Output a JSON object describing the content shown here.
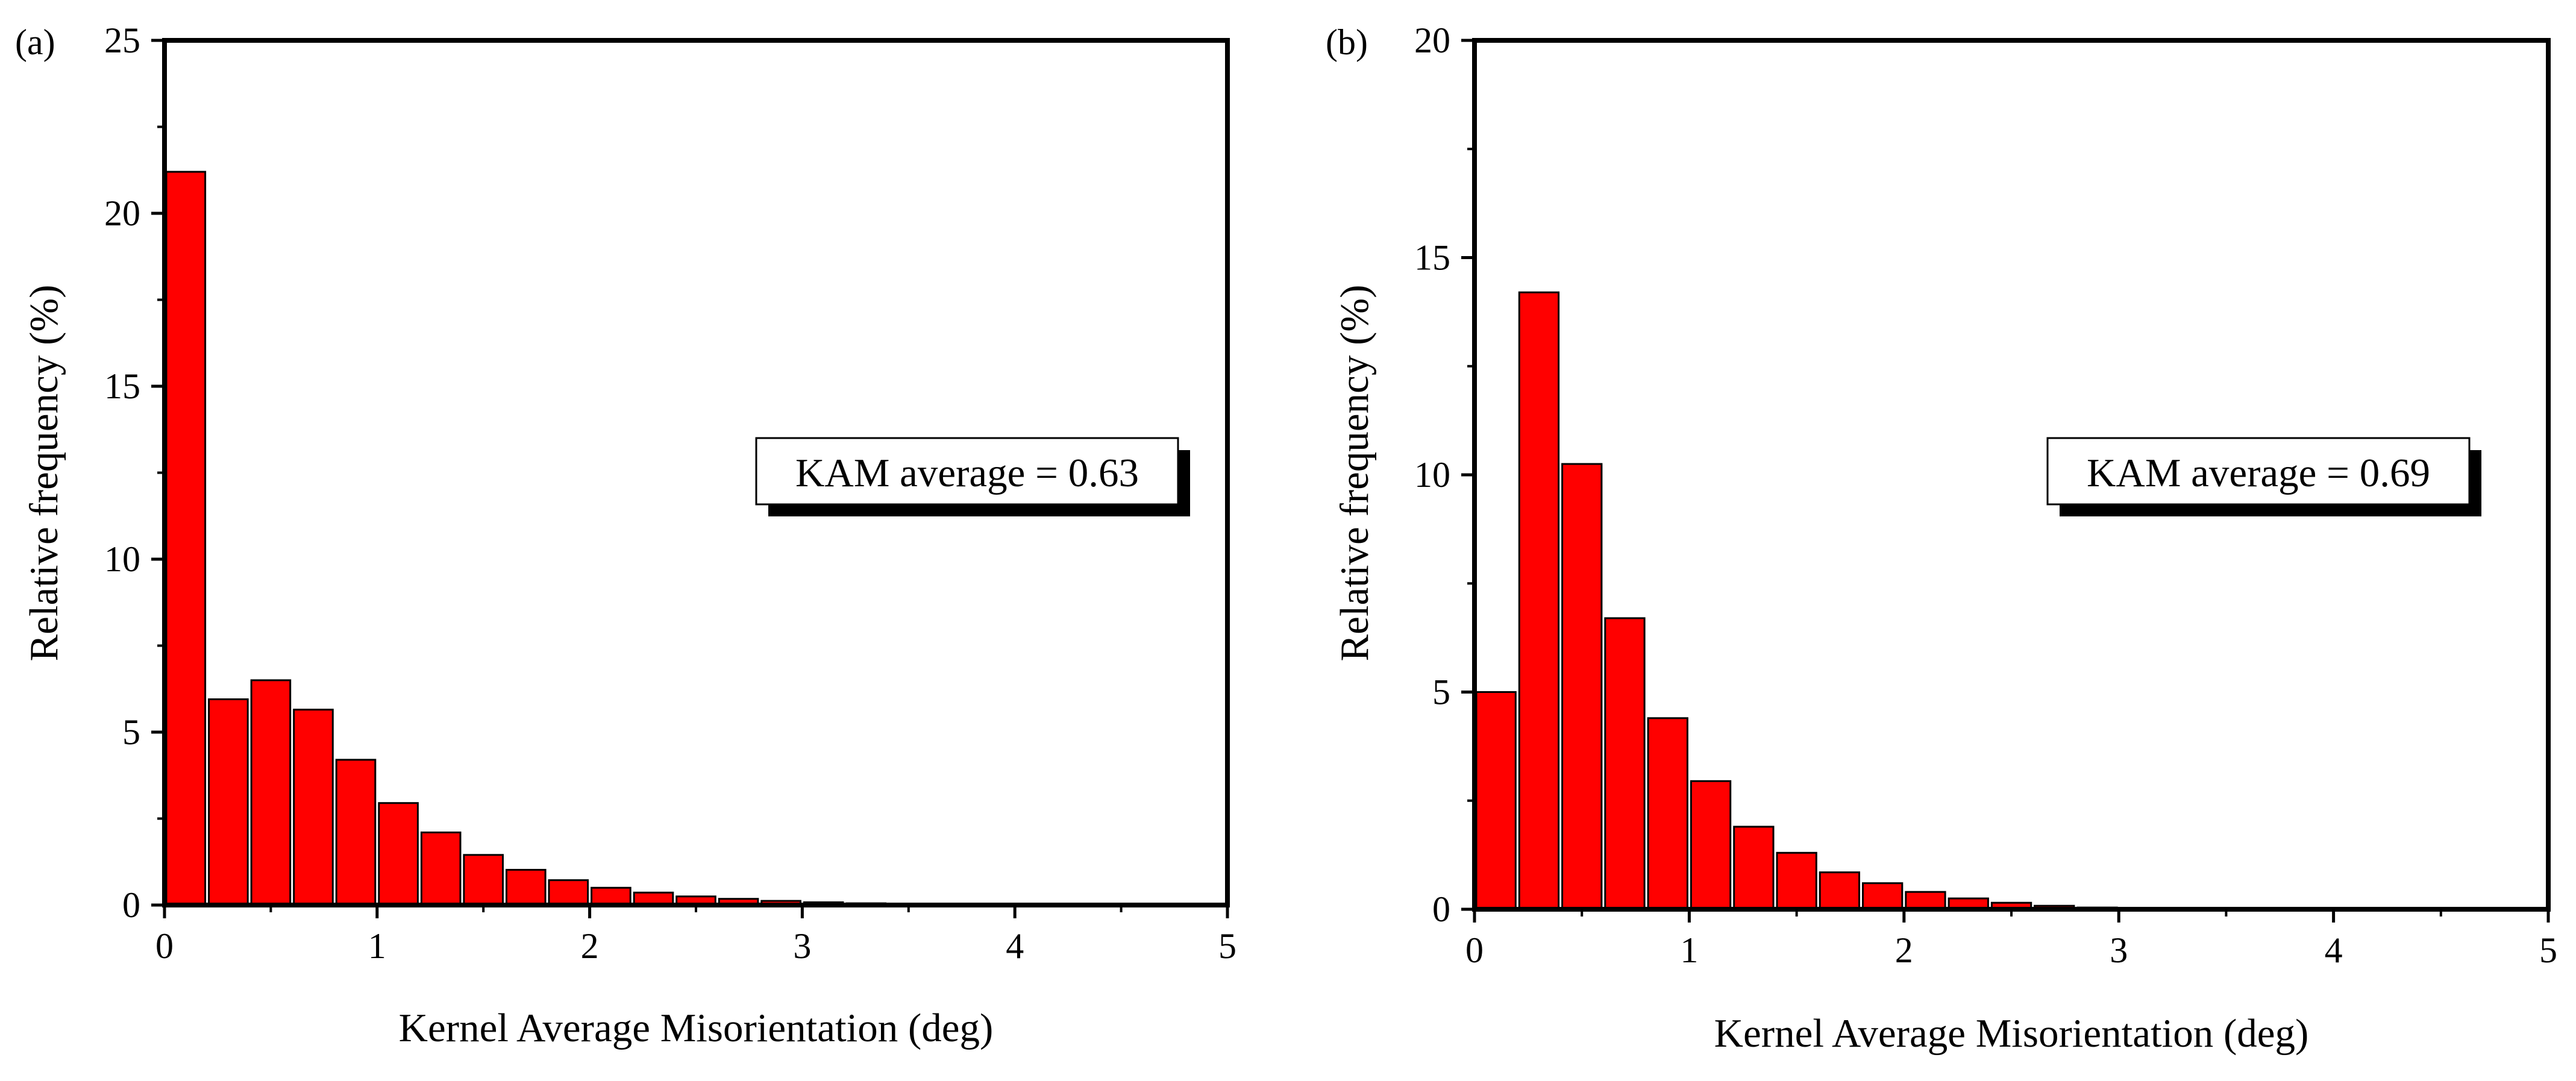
{
  "chart_data": [
    {
      "type": "bar",
      "panel_label": "(a)",
      "xlabel": "Kernel Average Misorientation (deg)",
      "ylabel": "Relative frequency (%)",
      "xlim": [
        0,
        5
      ],
      "ylim": [
        0,
        25
      ],
      "x_ticks": [
        0,
        1,
        2,
        3,
        4,
        5
      ],
      "y_ticks": [
        0,
        5,
        10,
        15,
        20,
        25
      ],
      "bin_width": 0.2,
      "x": [
        0.1,
        0.3,
        0.5,
        0.7,
        0.9,
        1.1,
        1.3,
        1.5,
        1.7,
        1.9,
        2.1,
        2.3,
        2.5,
        2.7,
        2.9,
        3.1,
        3.3,
        3.5,
        3.7,
        3.9,
        4.1,
        4.3,
        4.5,
        4.7,
        4.9
      ],
      "values": [
        21.2,
        5.95,
        6.5,
        5.65,
        4.2,
        2.95,
        2.1,
        1.45,
        1.02,
        0.72,
        0.5,
        0.36,
        0.25,
        0.18,
        0.12,
        0.08,
        0.05,
        0.03,
        0.02,
        0.01,
        0.01,
        0.01,
        0.0,
        0.0,
        0.0
      ],
      "bar_color": "#ff0000",
      "annotation": "KAM average = 0.63",
      "grid": false,
      "legend": "none"
    },
    {
      "type": "bar",
      "panel_label": "(b)",
      "xlabel": "Kernel Average Misorientation (deg)",
      "ylabel": "Relative frequency (%)",
      "xlim": [
        0,
        5
      ],
      "ylim": [
        0,
        20
      ],
      "x_ticks": [
        0,
        1,
        2,
        3,
        4,
        5
      ],
      "y_ticks": [
        0,
        5,
        10,
        15,
        20
      ],
      "bin_width": 0.2,
      "x": [
        0.1,
        0.3,
        0.5,
        0.7,
        0.9,
        1.1,
        1.3,
        1.5,
        1.7,
        1.9,
        2.1,
        2.3,
        2.5,
        2.7,
        2.9,
        3.1,
        3.3,
        3.5,
        3.7,
        3.9,
        4.1,
        4.3,
        4.5,
        4.7,
        4.9
      ],
      "values": [
        5.0,
        14.2,
        10.25,
        6.7,
        4.4,
        2.95,
        1.9,
        1.3,
        0.85,
        0.6,
        0.4,
        0.25,
        0.15,
        0.08,
        0.04,
        0.02,
        0.01,
        0.01,
        0.0,
        0.0,
        0.0,
        0.0,
        0.0,
        0.0,
        0.0
      ],
      "bar_color": "#ff0000",
      "annotation": "KAM average = 0.69",
      "grid": false,
      "legend": "none"
    }
  ]
}
